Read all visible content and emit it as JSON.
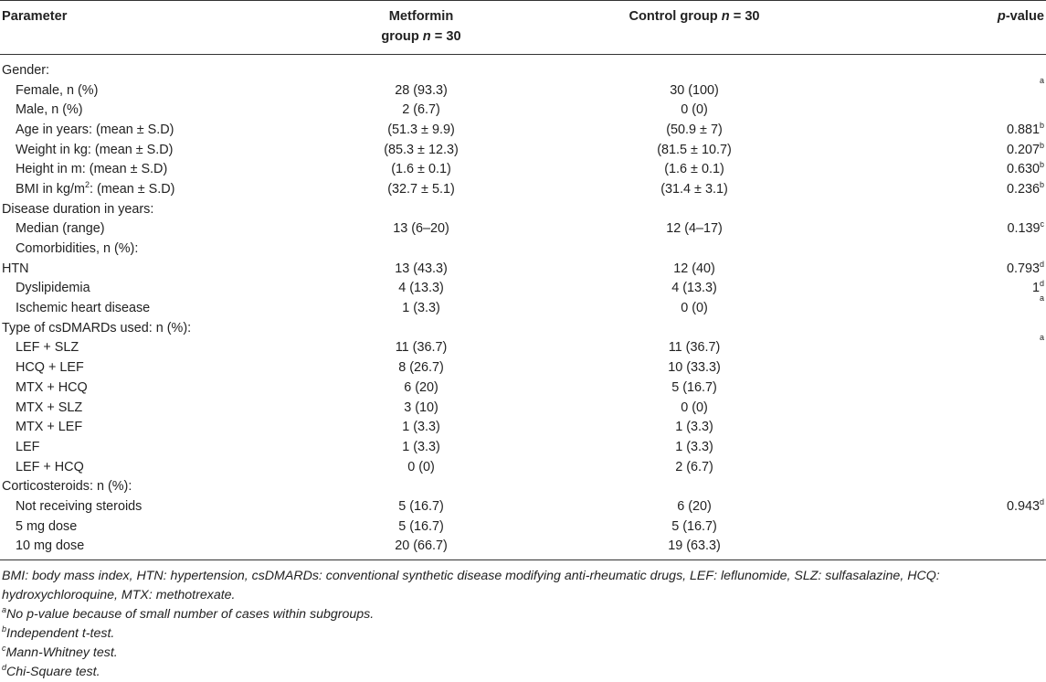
{
  "header": {
    "col1": "Parameter",
    "col2_line1": "Metformin",
    "col2_line2_prefix": "group ",
    "col2_line2_var": "n",
    "col2_line2_suffix": " = 30",
    "col3_prefix": "Control group ",
    "col3_var": "n",
    "col3_suffix": " = 30",
    "col4_var": "p",
    "col4_suffix": "-value"
  },
  "rows": [
    {
      "label": "Gender:",
      "metformin": "",
      "control": "",
      "p": "",
      "p_sup": "",
      "indent": false
    },
    {
      "label": "Female, n (%)",
      "metformin": "28 (93.3)",
      "control": "30 (100)",
      "p": "",
      "p_sup": "a",
      "indent": true
    },
    {
      "label": "Male, n (%)",
      "metformin": "2 (6.7)",
      "control": "0 (0)",
      "p": "",
      "p_sup": "",
      "indent": true
    },
    {
      "label": "Age in years: (mean ± S.D)",
      "metformin": "(51.3 ± 9.9)",
      "control": "(50.9 ± 7)",
      "p": "0.881",
      "p_sup": "b",
      "indent": true
    },
    {
      "label": "Weight in kg: (mean ± S.D)",
      "metformin": "(85.3 ± 12.3)",
      "control": "(81.5 ± 10.7)",
      "p": "0.207",
      "p_sup": "b",
      "indent": true
    },
    {
      "label": "Height in m: (mean ± S.D)",
      "metformin": "(1.6 ± 0.1)",
      "control": "(1.6 ± 0.1)",
      "p": "0.630",
      "p_sup": "b",
      "indent": true
    },
    {
      "label": "BMI in kg/m",
      "label_sup": "2",
      "label_after": ": (mean ± S.D)",
      "metformin": "(32.7 ± 5.1)",
      "control": "(31.4 ± 3.1)",
      "p": "0.236",
      "p_sup": "b",
      "indent": true
    },
    {
      "label": "Disease duration in years:",
      "metformin": "",
      "control": "",
      "p": "",
      "p_sup": "",
      "indent": false
    },
    {
      "label": "Median (range)",
      "metformin": "13 (6–20)",
      "control": "12 (4–17)",
      "p": "0.139",
      "p_sup": "c",
      "indent": true
    },
    {
      "label": "Comorbidities, n (%):",
      "metformin": "",
      "control": "",
      "p": "",
      "p_sup": "",
      "indent": true
    },
    {
      "label": "HTN",
      "metformin": "13 (43.3)",
      "control": "12 (40)",
      "p": "0.793",
      "p_sup": "d",
      "indent": false
    },
    {
      "label": "Dyslipidemia",
      "metformin": "4 (13.3)",
      "control": "4 (13.3)",
      "p": "1",
      "p_sup": "d",
      "indent": true
    },
    {
      "label": "Ischemic heart disease",
      "metformin": "1 (3.3)",
      "control": "0 (0)",
      "p": "",
      "p_sup": "a",
      "indent": true
    },
    {
      "label": "Type of csDMARDs used: n (%):",
      "metformin": "",
      "control": "",
      "p": "",
      "p_sup": "",
      "indent": false
    },
    {
      "label": "LEF + SLZ",
      "metformin": "11 (36.7)",
      "control": "11 (36.7)",
      "p": "",
      "p_sup": "a",
      "indent": true
    },
    {
      "label": "HCQ + LEF",
      "metformin": "8 (26.7)",
      "control": "10 (33.3)",
      "p": "",
      "p_sup": "",
      "indent": true
    },
    {
      "label": "MTX + HCQ",
      "metformin": "6 (20)",
      "control": "5 (16.7)",
      "p": "",
      "p_sup": "",
      "indent": true
    },
    {
      "label": "MTX + SLZ",
      "metformin": "3 (10)",
      "control": "0 (0)",
      "p": "",
      "p_sup": "",
      "indent": true
    },
    {
      "label": "MTX + LEF",
      "metformin": "1 (3.3)",
      "control": "1 (3.3)",
      "p": "",
      "p_sup": "",
      "indent": true
    },
    {
      "label": "LEF",
      "metformin": "1 (3.3)",
      "control": "1 (3.3)",
      "p": "",
      "p_sup": "",
      "indent": true
    },
    {
      "label": "LEF + HCQ",
      "metformin": "0 (0)",
      "control": "2 (6.7)",
      "p": "",
      "p_sup": "",
      "indent": true
    },
    {
      "label": "Corticosteroids: n (%):",
      "metformin": "",
      "control": "",
      "p": "",
      "p_sup": "",
      "indent": false
    },
    {
      "label": "Not receiving steroids",
      "metformin": "5 (16.7)",
      "control": "6 (20)",
      "p": "0.943",
      "p_sup": "d",
      "indent": true
    },
    {
      "label": "5 mg dose",
      "metformin": "5 (16.7)",
      "control": "5 (16.7)",
      "p": "",
      "p_sup": "",
      "indent": true
    },
    {
      "label": "10 mg dose",
      "metformin": "20 (66.7)",
      "control": "19 (63.3)",
      "p": "",
      "p_sup": "",
      "indent": true
    }
  ],
  "footnotes": {
    "abbreviations": "BMI: body mass index, HTN: hypertension, csDMARDs: conventional synthetic disease modifying anti-rheumatic drugs, LEF: leflunomide, SLZ: sulfasalazine, HCQ: hydroxychloroquine, MTX: methotrexate.",
    "a_mark": "a",
    "a_text": "No p-value because of small number of cases within subgroups.",
    "b_mark": "b",
    "b_text": "Independent t-test.",
    "c_mark": "c",
    "c_text": "Mann-Whitney test.",
    "d_mark": "d",
    "d_text": "Chi-Square test."
  }
}
